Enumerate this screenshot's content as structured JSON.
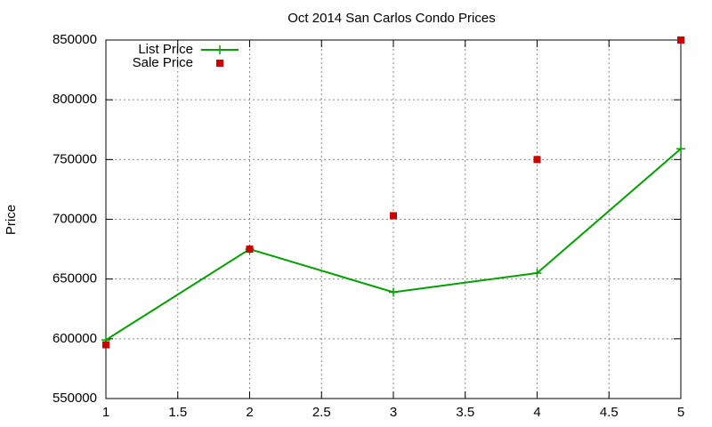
{
  "chart_data": {
    "type": "line",
    "title": "Oct 2014 San Carlos Condo Prices",
    "y_label": "Price",
    "x": [
      1,
      2,
      3,
      4,
      5
    ],
    "series": [
      {
        "name": "List Price",
        "color": "#00a000",
        "style": "linespoints",
        "values": [
          599000,
          675000,
          639000,
          655000,
          759000
        ]
      },
      {
        "name": "Sale Price",
        "color": "#cc0000",
        "style": "points",
        "values": [
          595000,
          675000,
          703000,
          750000,
          850000
        ]
      }
    ],
    "xlim": [
      1,
      5
    ],
    "xticks": [
      1,
      1.5,
      2,
      2.5,
      3,
      3.5,
      4,
      4.5,
      5
    ],
    "ylim": [
      550000,
      850000
    ],
    "yticks": [
      550000,
      600000,
      650000,
      700000,
      750000,
      800000,
      850000
    ],
    "grid": true,
    "legend": "top-left"
  }
}
